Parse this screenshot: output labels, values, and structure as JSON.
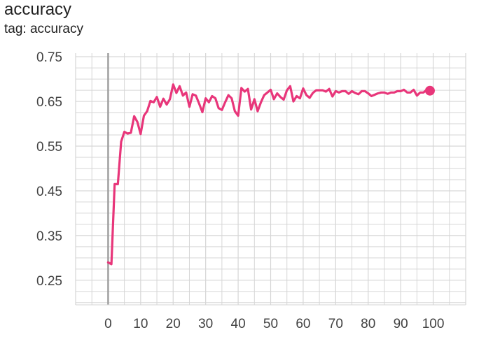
{
  "header": {
    "title": "accuracy",
    "subtitle": "tag: accuracy"
  },
  "colors": {
    "series": "#e8367a",
    "grid": "#d6d6d6",
    "axis": "#a0a0a0",
    "tick_text": "#424242"
  },
  "chart_data": {
    "type": "line",
    "title": "accuracy",
    "subtitle": "tag: accuracy",
    "xlim": [
      -10,
      110
    ],
    "ylim": [
      0.195,
      0.758
    ],
    "grid": true,
    "xticks": [
      0,
      10,
      20,
      30,
      40,
      50,
      60,
      70,
      80,
      90,
      100
    ],
    "yticks": [
      0.25,
      0.35,
      0.45,
      0.55,
      0.65,
      0.75
    ],
    "x_tick_labels": [
      "0",
      "10",
      "20",
      "30",
      "40",
      "50",
      "60",
      "70",
      "80",
      "90",
      "100"
    ],
    "y_tick_labels": [
      "0.25",
      "0.35",
      "0.45",
      "0.55",
      "0.65",
      "0.75"
    ],
    "series": [
      {
        "color": "#e8367a",
        "last_point_marker": true,
        "x": [
          0,
          1,
          2,
          3,
          4,
          5,
          6,
          7,
          8,
          9,
          10,
          11,
          12,
          13,
          14,
          15,
          16,
          17,
          18,
          19,
          20,
          21,
          22,
          23,
          24,
          25,
          26,
          27,
          28,
          29,
          30,
          31,
          32,
          33,
          34,
          35,
          36,
          37,
          38,
          39,
          40,
          41,
          42,
          43,
          44,
          45,
          46,
          47,
          48,
          49,
          50,
          51,
          52,
          53,
          54,
          55,
          56,
          57,
          58,
          59,
          60,
          61,
          62,
          63,
          64,
          65,
          66,
          67,
          68,
          69,
          70,
          71,
          72,
          73,
          74,
          75,
          76,
          77,
          78,
          79,
          80,
          81,
          82,
          83,
          84,
          85,
          86,
          87,
          88,
          89,
          90,
          91,
          92,
          93,
          94,
          95,
          96,
          97,
          98,
          99
        ],
        "y": [
          0.29,
          0.286,
          0.465,
          0.465,
          0.56,
          0.582,
          0.578,
          0.58,
          0.617,
          0.604,
          0.577,
          0.618,
          0.628,
          0.651,
          0.648,
          0.66,
          0.638,
          0.656,
          0.643,
          0.655,
          0.688,
          0.669,
          0.684,
          0.663,
          0.67,
          0.638,
          0.666,
          0.663,
          0.645,
          0.626,
          0.657,
          0.648,
          0.662,
          0.657,
          0.635,
          0.631,
          0.648,
          0.664,
          0.657,
          0.628,
          0.618,
          0.68,
          0.672,
          0.678,
          0.632,
          0.655,
          0.628,
          0.648,
          0.664,
          0.67,
          0.676,
          0.655,
          0.668,
          0.66,
          0.654,
          0.675,
          0.684,
          0.65,
          0.662,
          0.657,
          0.679,
          0.664,
          0.658,
          0.669,
          0.675,
          0.675,
          0.675,
          0.672,
          0.678,
          0.661,
          0.673,
          0.67,
          0.673,
          0.673,
          0.667,
          0.673,
          0.669,
          0.666,
          0.673,
          0.673,
          0.668,
          0.662,
          0.665,
          0.668,
          0.67,
          0.67,
          0.667,
          0.67,
          0.67,
          0.673,
          0.673,
          0.676,
          0.67,
          0.67,
          0.676,
          0.663,
          0.67,
          0.67,
          0.676,
          0.674
        ]
      }
    ]
  }
}
